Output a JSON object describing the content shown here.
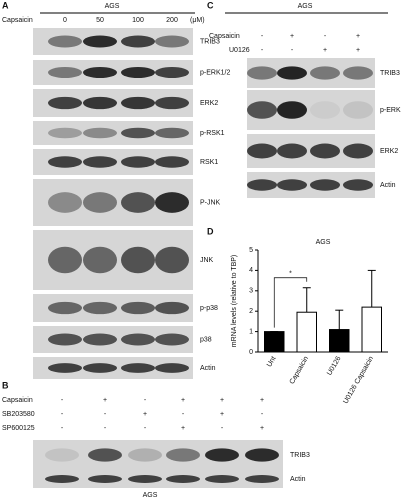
{
  "panel_a": {
    "letter": "A",
    "cell_line": "AGS",
    "treatment": "Capsaicin",
    "doses": [
      "0",
      "50",
      "100",
      "200"
    ],
    "unit": "(μM)",
    "blots": [
      "TRIB3",
      "p-ERK1/2",
      "ERK2",
      "p-RSK1",
      "RSK1",
      "P-JNK",
      "JNK",
      "p-p38",
      "p38",
      "Actin"
    ]
  },
  "panel_b": {
    "letter": "B",
    "treatments": [
      {
        "name": "Capsaicin",
        "signs": [
          "-",
          "+",
          "-",
          "+",
          "+",
          "+"
        ]
      },
      {
        "name": "SB203580",
        "signs": [
          "-",
          "-",
          "+",
          "-",
          "+",
          "-"
        ]
      },
      {
        "name": "SP600125",
        "signs": [
          "-",
          "-",
          "-",
          "+",
          "-",
          "+"
        ]
      }
    ],
    "blots": [
      "TRIB3",
      "Actin"
    ],
    "cell_line": "AGS"
  },
  "panel_c": {
    "letter": "C",
    "cell_line": "AGS",
    "treatments": [
      {
        "name": "Capsaicin",
        "signs": [
          "-",
          "+",
          "-",
          "+"
        ]
      },
      {
        "name": "U0126",
        "signs": [
          "-",
          "-",
          "+",
          "+"
        ]
      }
    ],
    "blots": [
      "TRIB3",
      "p-ERK",
      "ERK2",
      "Actin"
    ]
  },
  "panel_d": {
    "letter": "D"
  },
  "chart_data": {
    "type": "bar",
    "title": "AGS",
    "y_label": "mRNA levels (relative to TBP)",
    "categories": [
      "Unt",
      "Capsaicin",
      "U0126",
      "U0126 Capsaicin"
    ],
    "values": [
      1,
      1.95,
      1.1,
      2.2
    ],
    "errors": [
      0,
      1.2,
      0.95,
      1.8
    ],
    "colors": [
      "#000000",
      "#ffffff",
      "#000000",
      "#ffffff"
    ],
    "ylim": [
      0,
      5
    ],
    "yticks": [
      0,
      1,
      2,
      3,
      4,
      5
    ],
    "annotation": "*"
  }
}
